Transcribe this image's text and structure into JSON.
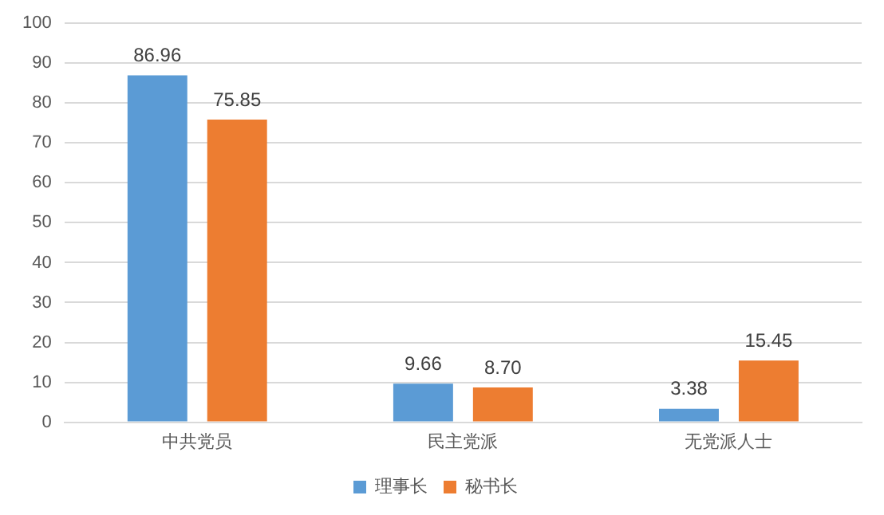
{
  "chart_data": {
    "type": "bar",
    "categories": [
      "中共党员",
      "民主党派",
      "无党派人士"
    ],
    "series": [
      {
        "name": "理事长",
        "color": "#5b9bd5",
        "values": [
          86.96,
          9.66,
          3.38
        ],
        "value_labels": [
          "86.96",
          "9.66",
          "3.38"
        ]
      },
      {
        "name": "秘书长",
        "color": "#ed7d31",
        "values": [
          75.85,
          8.7,
          15.45
        ],
        "value_labels": [
          "75.85",
          "8.70",
          "15.45"
        ]
      }
    ],
    "ylim": [
      0,
      100
    ],
    "yticks": [
      0,
      10,
      20,
      30,
      40,
      50,
      60,
      70,
      80,
      90,
      100
    ],
    "grid": "y",
    "legend": "bottom"
  }
}
